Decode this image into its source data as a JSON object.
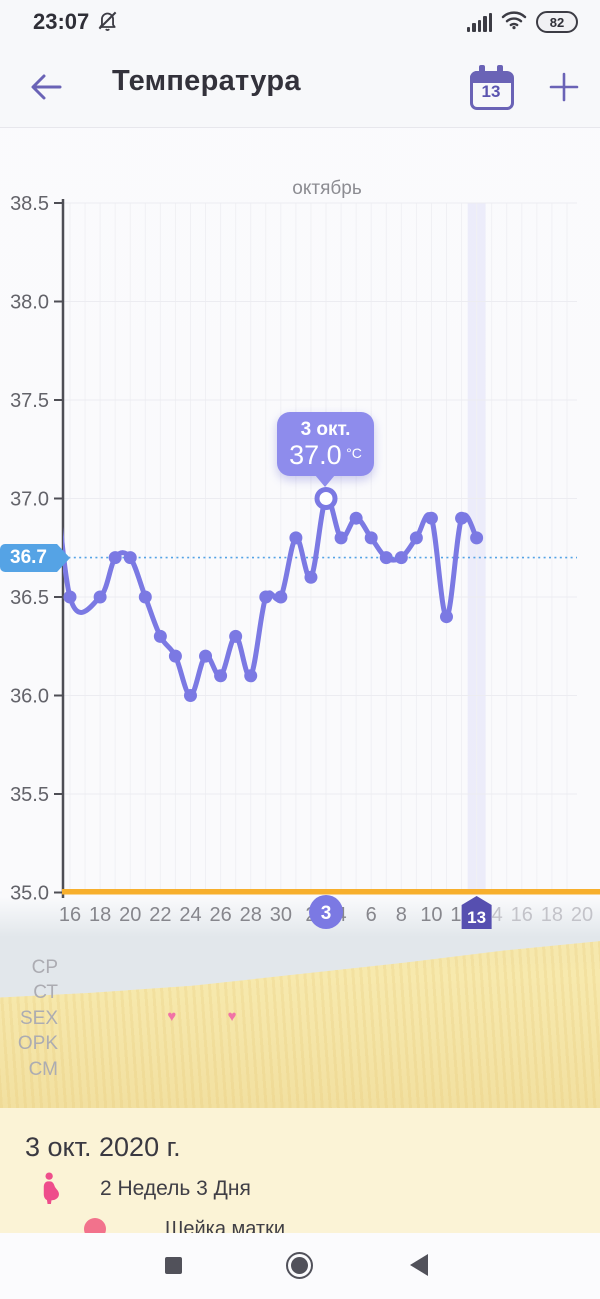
{
  "status_bar": {
    "time": "23:07",
    "battery_percent": "82"
  },
  "header": {
    "title": "Температура",
    "calendar_badge_day": "13"
  },
  "chart_data": {
    "type": "line",
    "title": "октябрь",
    "unit": "°C",
    "grid": true,
    "legend_position": "none",
    "y_axis": {
      "min": 35.0,
      "max": 38.5,
      "ticks": [
        "38.5",
        "38.0",
        "37.5",
        "37.0",
        "36.5",
        "36.0",
        "35.5",
        "35.0"
      ]
    },
    "coverline": {
      "value": 36.7,
      "label": "36.7"
    },
    "x_ticks": [
      {
        "label": "16",
        "d": 0,
        "future": false
      },
      {
        "label": "18",
        "d": 2,
        "future": false
      },
      {
        "label": "20",
        "d": 4,
        "future": false
      },
      {
        "label": "22",
        "d": 6,
        "future": false
      },
      {
        "label": "24",
        "d": 8,
        "future": false
      },
      {
        "label": "26",
        "d": 10,
        "future": false
      },
      {
        "label": "28",
        "d": 12,
        "future": false
      },
      {
        "label": "30",
        "d": 14,
        "future": false
      },
      {
        "label": "2",
        "d": 16,
        "future": false
      },
      {
        "label": "4",
        "d": 18,
        "future": false
      },
      {
        "label": "6",
        "d": 20,
        "future": false
      },
      {
        "label": "8",
        "d": 22,
        "future": false
      },
      {
        "label": "10",
        "d": 24,
        "future": false
      },
      {
        "label": "12",
        "d": 26,
        "future": false
      },
      {
        "label": "14",
        "d": 28,
        "future": true
      },
      {
        "label": "16",
        "d": 30,
        "future": true
      },
      {
        "label": "18",
        "d": 32,
        "future": true
      },
      {
        "label": "20",
        "d": 34,
        "future": true
      }
    ],
    "points": [
      {
        "date": "16 сент.",
        "d": 0,
        "value": 36.5
      },
      {
        "date": "18 сент.",
        "d": 2,
        "value": 36.5
      },
      {
        "date": "19 сент.",
        "d": 3,
        "value": 36.7
      },
      {
        "date": "20 сент.",
        "d": 4,
        "value": 36.7
      },
      {
        "date": "21 сент.",
        "d": 5,
        "value": 36.5
      },
      {
        "date": "22 сент.",
        "d": 6,
        "value": 36.3
      },
      {
        "date": "23 сент.",
        "d": 7,
        "value": 36.2
      },
      {
        "date": "24 сент.",
        "d": 8,
        "value": 36.0
      },
      {
        "date": "25 сент.",
        "d": 9,
        "value": 36.2
      },
      {
        "date": "26 сент.",
        "d": 10,
        "value": 36.1
      },
      {
        "date": "27 сент.",
        "d": 11,
        "value": 36.3
      },
      {
        "date": "28 сент.",
        "d": 12,
        "value": 36.1
      },
      {
        "date": "29 сент.",
        "d": 13,
        "value": 36.5
      },
      {
        "date": "30 сент.",
        "d": 14,
        "value": 36.5
      },
      {
        "date": "1 окт.",
        "d": 15,
        "value": 36.8
      },
      {
        "date": "2 окт.",
        "d": 16,
        "value": 36.6
      },
      {
        "date": "3 окт.",
        "d": 17,
        "value": 37.0,
        "selected": true
      },
      {
        "date": "4 окт.",
        "d": 18,
        "value": 36.8
      },
      {
        "date": "5 окт.",
        "d": 19,
        "value": 36.9
      },
      {
        "date": "6 окт.",
        "d": 20,
        "value": 36.8
      },
      {
        "date": "7 окт.",
        "d": 21,
        "value": 36.7
      },
      {
        "date": "8 окт.",
        "d": 22,
        "value": 36.7
      },
      {
        "date": "9 окт.",
        "d": 23,
        "value": 36.8
      },
      {
        "date": "10 окт.",
        "d": 24,
        "value": 36.9
      },
      {
        "date": "11 окт.",
        "d": 25,
        "value": 36.4
      },
      {
        "date": "12 окт.",
        "d": 26,
        "value": 36.9
      },
      {
        "date": "13 окт.",
        "d": 27,
        "value": 36.8
      }
    ],
    "selected_badge": {
      "label": "3",
      "d": 17
    },
    "today_badge": {
      "label": "13",
      "d": 27
    },
    "tooltip": {
      "date": "3 окт.",
      "value": "37.0",
      "unit": "°C"
    },
    "sex_heart_days": [
      7,
      11
    ]
  },
  "track_rows": {
    "labels": [
      "СР",
      "СТ",
      "SEX",
      "OPK",
      "СМ"
    ]
  },
  "summary": {
    "date_title": "3 окт. 2020 г.",
    "pregnancy_text": "2 Недель 3 Дня",
    "clipped_row_text": "Шейка матки"
  },
  "colors": {
    "accent_purple": "#6A63B6",
    "series_line": "#7B79E3",
    "tooltip_bg": "#8E8CEC",
    "coverline_blue": "#55A3E5",
    "baseline_orange": "#F7AF2D",
    "today_badge": "#564FB0",
    "selected_badge": "#7B79E3",
    "heart_pink": "#F173A6",
    "summary_bg": "#FBF3D6"
  }
}
